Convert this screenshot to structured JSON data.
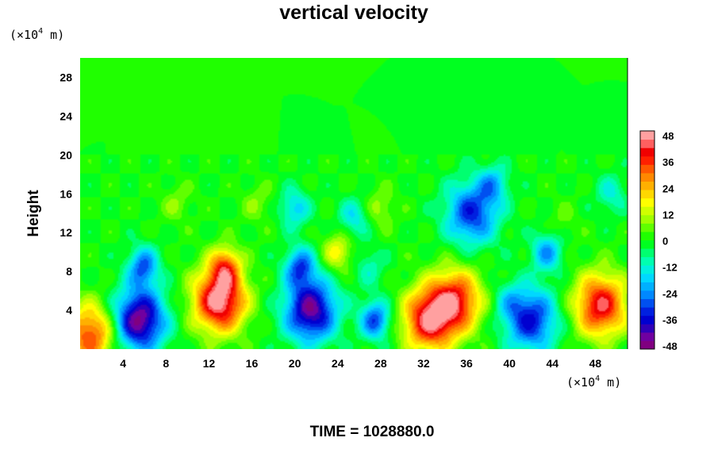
{
  "chart_data": {
    "type": "heatmap",
    "title": "vertical velocity",
    "ylabel": "Height",
    "xlabel": "",
    "x_unit_prefix": "(×10",
    "x_unit_exp": "4",
    "x_unit_suffix": " m)",
    "y_unit_prefix": "(×10",
    "y_unit_exp": "4",
    "y_unit_suffix": " m)",
    "xlim": [
      0,
      51
    ],
    "ylim": [
      0,
      30
    ],
    "x_ticks": [
      "4",
      "8",
      "12",
      "16",
      "20",
      "24",
      "28",
      "32",
      "36",
      "40",
      "44",
      "48"
    ],
    "y_ticks": [
      "4",
      "8",
      "12",
      "16",
      "20",
      "24",
      "28"
    ],
    "colorbar": {
      "min": -48,
      "max": 48,
      "step": 4,
      "labels": [
        "48",
        "36",
        "24",
        "12",
        "0",
        "-12",
        "-24",
        "-36",
        "-48"
      ],
      "colors": [
        "#800080",
        "#7000a0",
        "#3000b8",
        "#0000d0",
        "#0020e0",
        "#0050f0",
        "#0088ff",
        "#00b0ff",
        "#00d8ff",
        "#00f0e0",
        "#00ffb0",
        "#00ff70",
        "#00ff20",
        "#20ff00",
        "#60ff00",
        "#a0ff00",
        "#d0ff00",
        "#ffff00",
        "#ffd800",
        "#ffb000",
        "#ff8800",
        "#ff5800",
        "#ff2000",
        "#f00000",
        "#ff6060",
        "#ffa0a0"
      ]
    },
    "cells": [
      {
        "x": 1.0,
        "y": 1.5,
        "w": 0.7
      },
      {
        "x": 5.5,
        "y": 3.0,
        "w": -0.95
      },
      {
        "x": 5.9,
        "y": 8.5,
        "w": -0.55
      },
      {
        "x": 13.0,
        "y": 5.0,
        "w": 1.0
      },
      {
        "x": 13.5,
        "y": 8.5,
        "w": 0.55
      },
      {
        "x": 21.5,
        "y": 4.0,
        "w": -0.9
      },
      {
        "x": 20.5,
        "y": 8.5,
        "w": -0.55
      },
      {
        "x": 20.0,
        "y": 14.5,
        "w": -0.35
      },
      {
        "x": 24.0,
        "y": 10.0,
        "w": 0.35
      },
      {
        "x": 27.5,
        "y": 3.0,
        "w": -0.6
      },
      {
        "x": 25.5,
        "y": 13.5,
        "w": -0.3
      },
      {
        "x": 27.0,
        "y": 8.5,
        "w": -0.2
      },
      {
        "x": 28.0,
        "y": 14.5,
        "w": 0.2
      },
      {
        "x": 32.5,
        "y": 3.0,
        "w": 0.85
      },
      {
        "x": 35.0,
        "y": 5.0,
        "w": 0.75
      },
      {
        "x": 36.5,
        "y": 14.0,
        "w": -0.65
      },
      {
        "x": 38.5,
        "y": 17.0,
        "w": -0.35
      },
      {
        "x": 40.0,
        "y": 5.0,
        "w": -0.2
      },
      {
        "x": 42.0,
        "y": 3.0,
        "w": -0.7
      },
      {
        "x": 43.5,
        "y": 10.0,
        "w": -0.45
      },
      {
        "x": 45.0,
        "y": 13.0,
        "w": 0.1
      },
      {
        "x": 48.5,
        "y": 4.5,
        "w": 0.85
      },
      {
        "x": 49.5,
        "y": 16.0,
        "w": -0.25
      },
      {
        "x": 9.0,
        "y": 15.0,
        "w": 0.15
      },
      {
        "x": 16.5,
        "y": 15.0,
        "w": 0.15
      }
    ]
  },
  "footer": {
    "time_label": "TIME = 1028880.0"
  }
}
